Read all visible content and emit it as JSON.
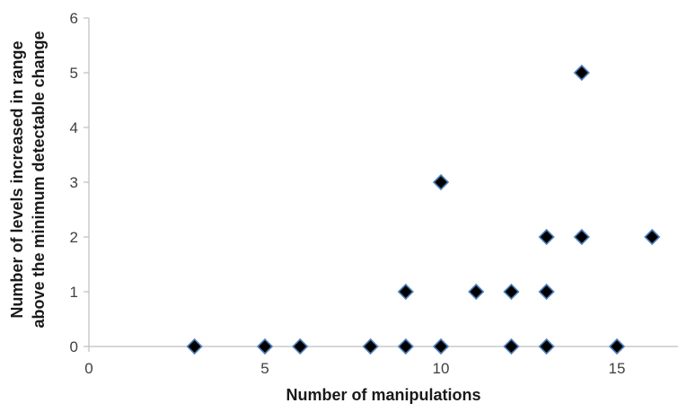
{
  "chart_data": {
    "type": "scatter",
    "title": "",
    "xlabel": "Number of manipulations",
    "ylabel_lines": [
      "Number of levels increased in range",
      "above the minimum detectable change"
    ],
    "xlim": [
      0,
      17.2
    ],
    "ylim": [
      0,
      6
    ],
    "x_ticks": [
      0,
      5,
      10,
      15
    ],
    "y_ticks": [
      0,
      1,
      2,
      3,
      4,
      5,
      6
    ],
    "grid": false,
    "legend": "none",
    "marker": "diamond",
    "marker_fill": "#000000",
    "marker_edge": "#4f81bd",
    "axis_color": "#bfbfbf",
    "series": [
      {
        "points": [
          {
            "x": 3,
            "y": 0
          },
          {
            "x": 5,
            "y": 0
          },
          {
            "x": 6,
            "y": 0
          },
          {
            "x": 8,
            "y": 0
          },
          {
            "x": 9,
            "y": 0
          },
          {
            "x": 9,
            "y": 1
          },
          {
            "x": 10,
            "y": 0
          },
          {
            "x": 10,
            "y": 3
          },
          {
            "x": 11,
            "y": 1
          },
          {
            "x": 12,
            "y": 0
          },
          {
            "x": 12,
            "y": 1
          },
          {
            "x": 13,
            "y": 0
          },
          {
            "x": 13,
            "y": 1
          },
          {
            "x": 13,
            "y": 2
          },
          {
            "x": 14,
            "y": 2
          },
          {
            "x": 14,
            "y": 5
          },
          {
            "x": 15,
            "y": 0
          },
          {
            "x": 16,
            "y": 2
          }
        ]
      }
    ]
  }
}
